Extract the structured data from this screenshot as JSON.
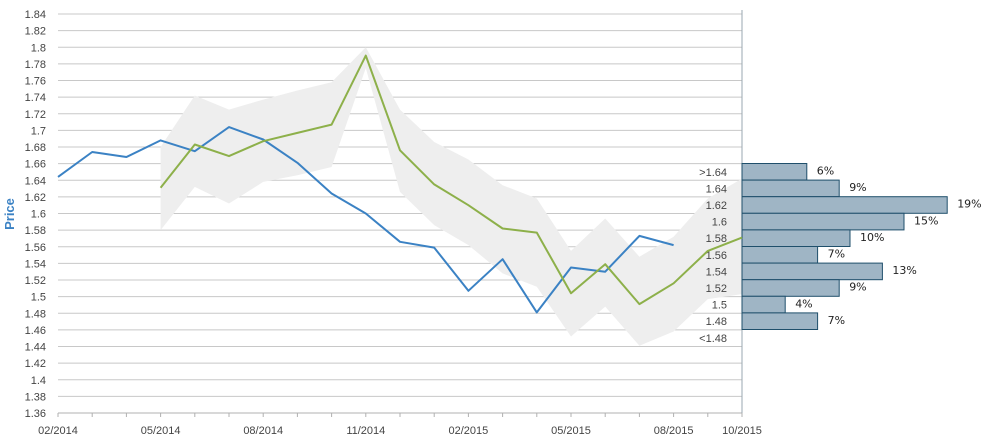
{
  "chart_data": {
    "type": "line",
    "ylabel": "Price",
    "ylim": [
      1.36,
      1.84
    ],
    "yticks": [
      "1.84",
      "1.82",
      "1.8",
      "1.78",
      "1.76",
      "1.74",
      "1.72",
      "1.7",
      "1.68",
      "1.66",
      "1.64",
      "1.62",
      "1.6",
      "1.58",
      "1.56",
      "1.54",
      "1.52",
      "1.5",
      "1.48",
      "1.46",
      "1.44",
      "1.42",
      "1.4",
      "1.38",
      "1.36"
    ],
    "xticks": [
      "02/2014",
      "05/2014",
      "08/2014",
      "11/2014",
      "02/2015",
      "05/2015",
      "08/2015",
      "10/2015"
    ],
    "grid": true,
    "series": [
      {
        "color": "#3b82c4",
        "x": [
          "02/2014",
          "03/2014",
          "04/2014",
          "05/2014",
          "06/2014",
          "07/2014",
          "08/2014",
          "09/2014",
          "10/2014",
          "11/2014",
          "12/2014",
          "01/2015",
          "02/2015",
          "03/2015",
          "04/2015",
          "05/2015",
          "06/2015",
          "07/2015",
          "08/2015"
        ],
        "values": [
          1.644,
          1.674,
          1.668,
          1.688,
          1.675,
          1.704,
          1.689,
          1.661,
          1.624,
          1.6,
          1.566,
          1.559,
          1.507,
          1.545,
          1.481,
          1.535,
          1.53,
          1.573,
          1.562
        ]
      },
      {
        "color": "#8db04a",
        "x": [
          "05/2014",
          "06/2014",
          "07/2014",
          "08/2014",
          "09/2014",
          "10/2014",
          "11/2014",
          "12/2014",
          "01/2015",
          "02/2015",
          "03/2015",
          "04/2015",
          "05/2015",
          "06/2015",
          "07/2015",
          "08/2015",
          "09/2015",
          "10/2015"
        ],
        "values": [
          1.631,
          1.683,
          1.669,
          1.687,
          1.697,
          1.707,
          1.79,
          1.676,
          1.635,
          1.61,
          1.582,
          1.577,
          1.504,
          1.539,
          1.491,
          1.516,
          1.555,
          1.571
        ]
      }
    ],
    "band": {
      "color": "#eeeeee",
      "x": [
        "05/2014",
        "06/2014",
        "07/2014",
        "08/2014",
        "09/2014",
        "10/2014",
        "11/2014",
        "12/2014",
        "01/2015",
        "02/2015",
        "03/2015",
        "04/2015",
        "05/2015",
        "06/2015",
        "07/2015",
        "08/2015",
        "09/2015",
        "10/2015"
      ],
      "upper": [
        1.68,
        1.742,
        1.725,
        1.737,
        1.748,
        1.758,
        1.8,
        1.725,
        1.686,
        1.665,
        1.634,
        1.618,
        1.555,
        1.594,
        1.548,
        1.572,
        1.618,
        1.642
      ],
      "lower": [
        1.58,
        1.632,
        1.612,
        1.638,
        1.646,
        1.656,
        1.775,
        1.626,
        1.586,
        1.562,
        1.528,
        1.512,
        1.452,
        1.488,
        1.441,
        1.458,
        1.497,
        1.503
      ]
    },
    "distribution": {
      "color": "#9fb5c5",
      "border": "#1f4f6b",
      "bins": [
        {
          "label": ">1.64",
          "pct": "6%",
          "value": 6
        },
        {
          "label": "1.64",
          "pct": "9%",
          "value": 9
        },
        {
          "label": "1.62",
          "pct": "19%",
          "value": 19
        },
        {
          "label": "1.6",
          "pct": "15%",
          "value": 15
        },
        {
          "label": "1.58",
          "pct": "10%",
          "value": 10
        },
        {
          "label": "1.56",
          "pct": "7%",
          "value": 7
        },
        {
          "label": "1.54",
          "pct": "13%",
          "value": 13
        },
        {
          "label": "1.52",
          "pct": "9%",
          "value": 9
        },
        {
          "label": "1.5",
          "pct": "4%",
          "value": 4
        },
        {
          "label": "1.48",
          "pct": "7%",
          "value": 7
        },
        {
          "label": "<1.48",
          "pct": "",
          "value": 0
        }
      ]
    }
  }
}
